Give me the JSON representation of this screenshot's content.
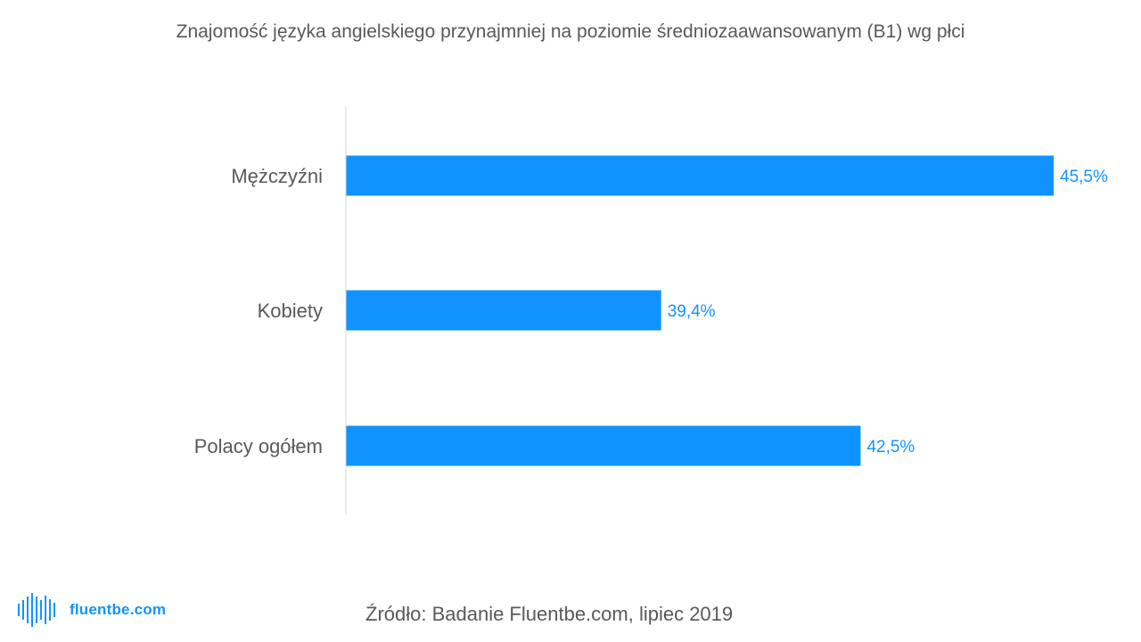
{
  "chart_data": {
    "type": "bar",
    "orientation": "horizontal",
    "title": "Znajomość języka angielskiego przynajmniej na poziomie średniozaawansowanym (B1) wg płci",
    "categories": [
      "Mężczyźni",
      "Kobiety",
      "Polacy ogółem"
    ],
    "values": [
      45.5,
      39.4,
      42.5
    ],
    "value_labels": [
      "45,5%",
      "39,4%",
      "42,5%"
    ],
    "xlim": [
      34.5,
      45.5
    ],
    "grid": false,
    "bar_color": "#1193ff",
    "label_color": "#1193ff"
  },
  "source": "Źródło: Badanie Fluentbe.com, lipiec 2019",
  "brand": {
    "name": "fluentbe.com",
    "icon": "soundwave-logo-icon",
    "color": "#1193ff"
  }
}
